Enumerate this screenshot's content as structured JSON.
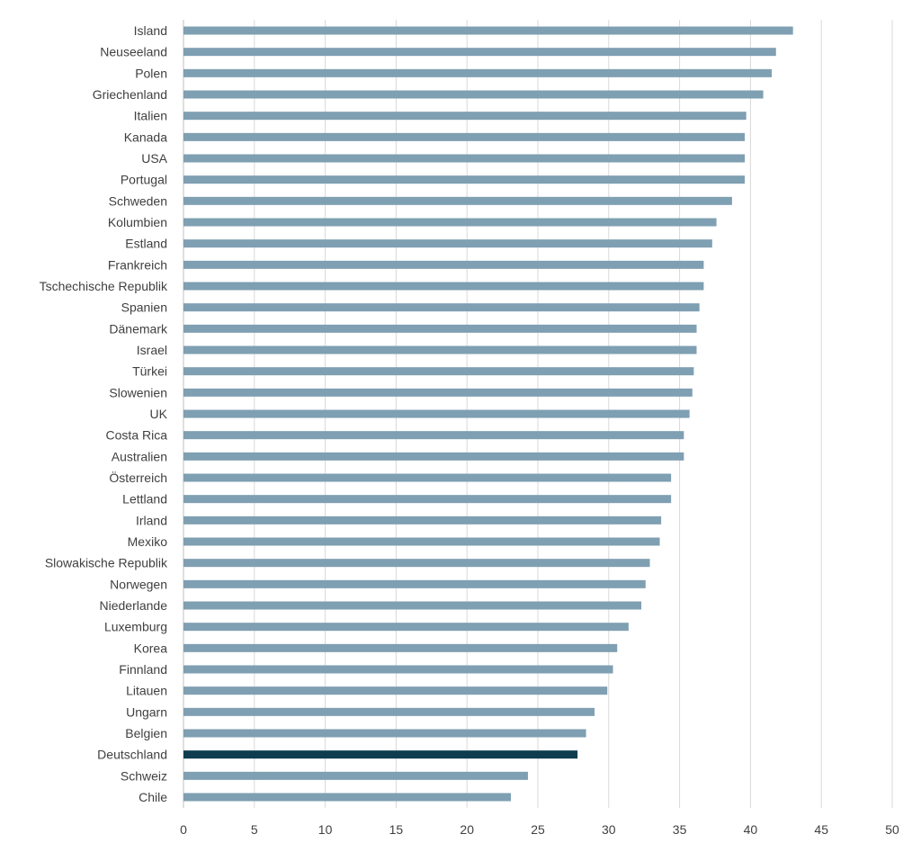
{
  "chart_data": {
    "type": "bar",
    "orientation": "horizontal",
    "title": "",
    "xlabel": "",
    "ylabel": "",
    "xlim": [
      0,
      50
    ],
    "x_ticks": [
      0,
      5,
      10,
      15,
      20,
      25,
      30,
      35,
      40,
      45,
      50
    ],
    "grid": "vertical",
    "legend": "none",
    "colors": {
      "default": "#7f9fb2",
      "highlight": "#0f3d50"
    },
    "highlight": "Deutschland",
    "categories": [
      "Island",
      "Neuseeland",
      "Polen",
      "Griechenland",
      "Italien",
      "Kanada",
      "USA",
      "Portugal",
      "Schweden",
      "Kolumbien",
      "Estland",
      "Frankreich",
      "Tschechische Republik",
      "Spanien",
      "Dänemark",
      "Israel",
      "Türkei",
      "Slowenien",
      "UK",
      "Costa Rica",
      "Australien",
      "Österreich",
      "Lettland",
      "Irland",
      "Mexiko",
      "Slowakische Republik",
      "Norwegen",
      "Niederlande",
      "Luxemburg",
      "Korea",
      "Finnland",
      "Litauen",
      "Ungarn",
      "Belgien",
      "Deutschland",
      "Schweiz",
      "Chile"
    ],
    "values": [
      43.0,
      41.8,
      41.5,
      40.9,
      39.7,
      39.6,
      39.6,
      39.6,
      38.7,
      37.6,
      37.3,
      36.7,
      36.7,
      36.4,
      36.2,
      36.2,
      36.0,
      35.9,
      35.7,
      35.3,
      35.3,
      34.4,
      34.4,
      33.7,
      33.6,
      32.9,
      32.6,
      32.3,
      31.4,
      30.6,
      30.3,
      29.9,
      29.0,
      28.4,
      27.8,
      24.3,
      23.1
    ]
  }
}
